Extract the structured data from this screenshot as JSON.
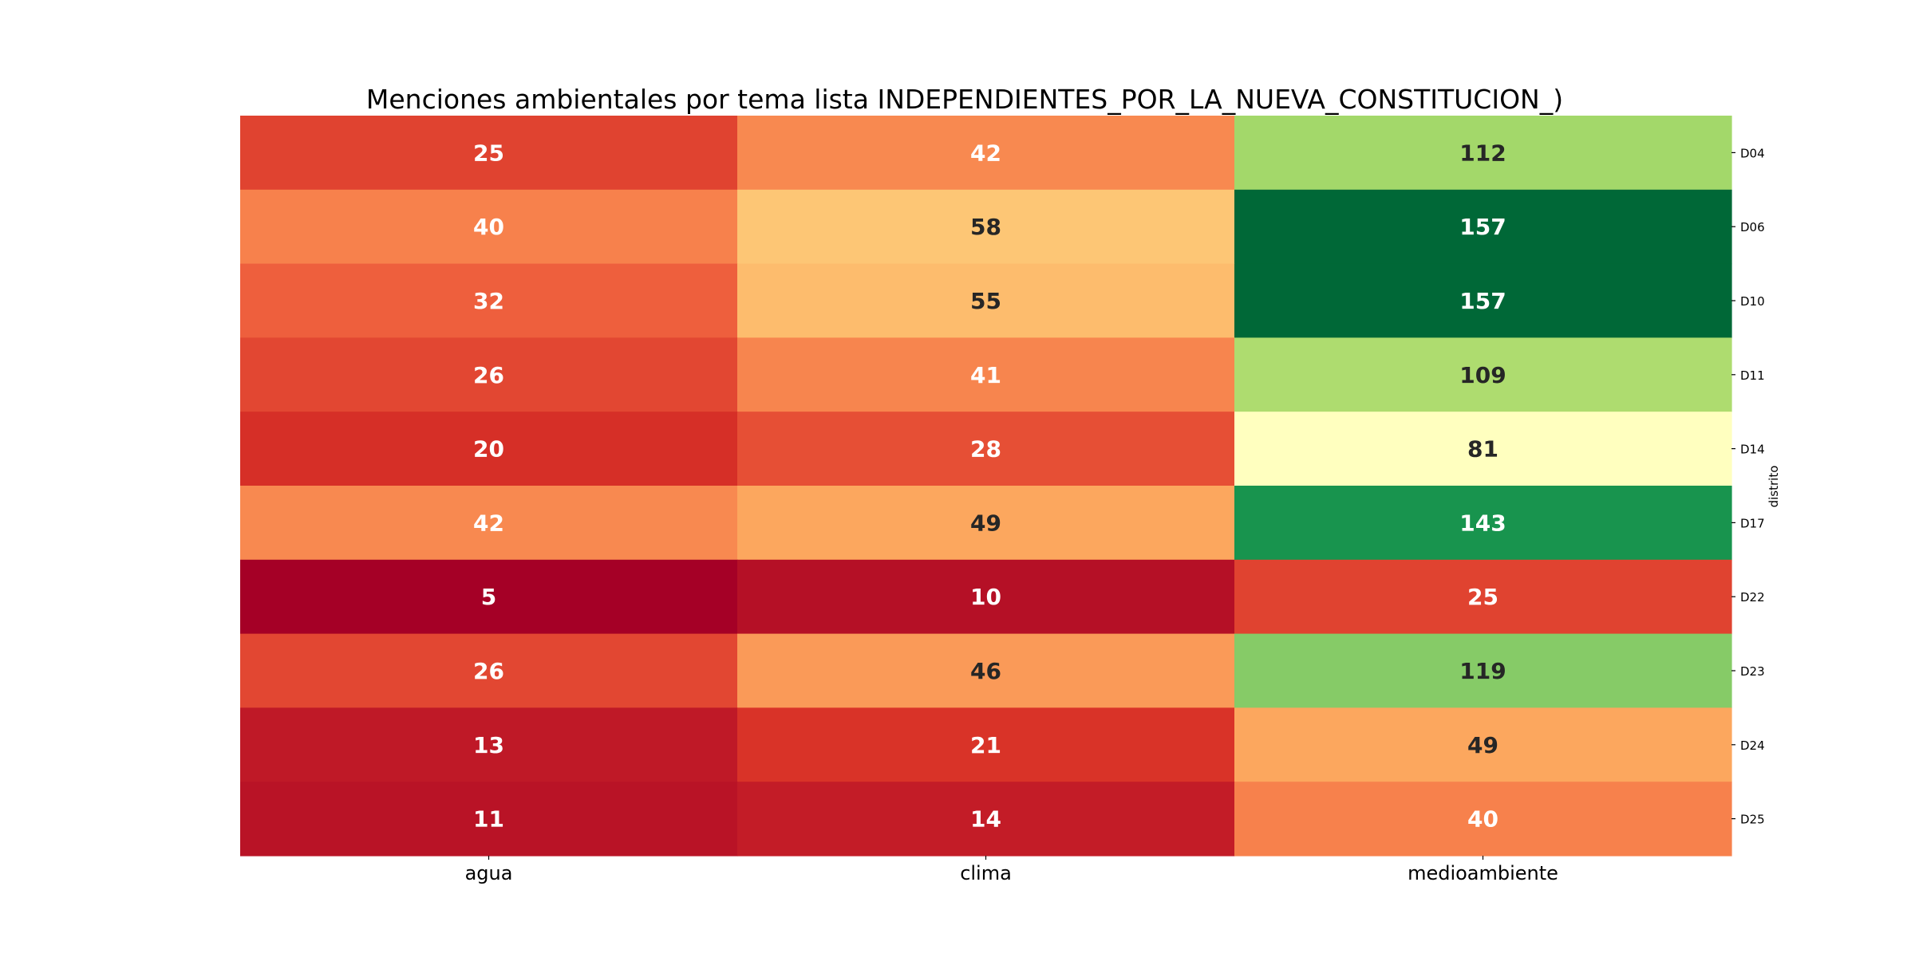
{
  "chart_data": {
    "type": "heatmap",
    "title": "Menciones ambientales por tema lista INDEPENDIENTES_POR_LA_NUEVA_CONSTITUCION_)",
    "xlabel": "",
    "ylabel": "distrito",
    "x": [
      "agua",
      "clima",
      "medioambiente"
    ],
    "y": [
      "D04",
      "D06",
      "D10",
      "D11",
      "D14",
      "D17",
      "D22",
      "D23",
      "D24",
      "D25"
    ],
    "values": [
      [
        25,
        42,
        112
      ],
      [
        40,
        58,
        157
      ],
      [
        32,
        55,
        157
      ],
      [
        26,
        41,
        109
      ],
      [
        20,
        28,
        81
      ],
      [
        42,
        49,
        143
      ],
      [
        5,
        10,
        25
      ],
      [
        26,
        46,
        119
      ],
      [
        13,
        21,
        49
      ],
      [
        11,
        14,
        40
      ]
    ],
    "colormap": "RdYlGn",
    "vmin": 5,
    "vmax": 157,
    "annotations": true,
    "y_axis_side": "right",
    "colorbar": false
  }
}
